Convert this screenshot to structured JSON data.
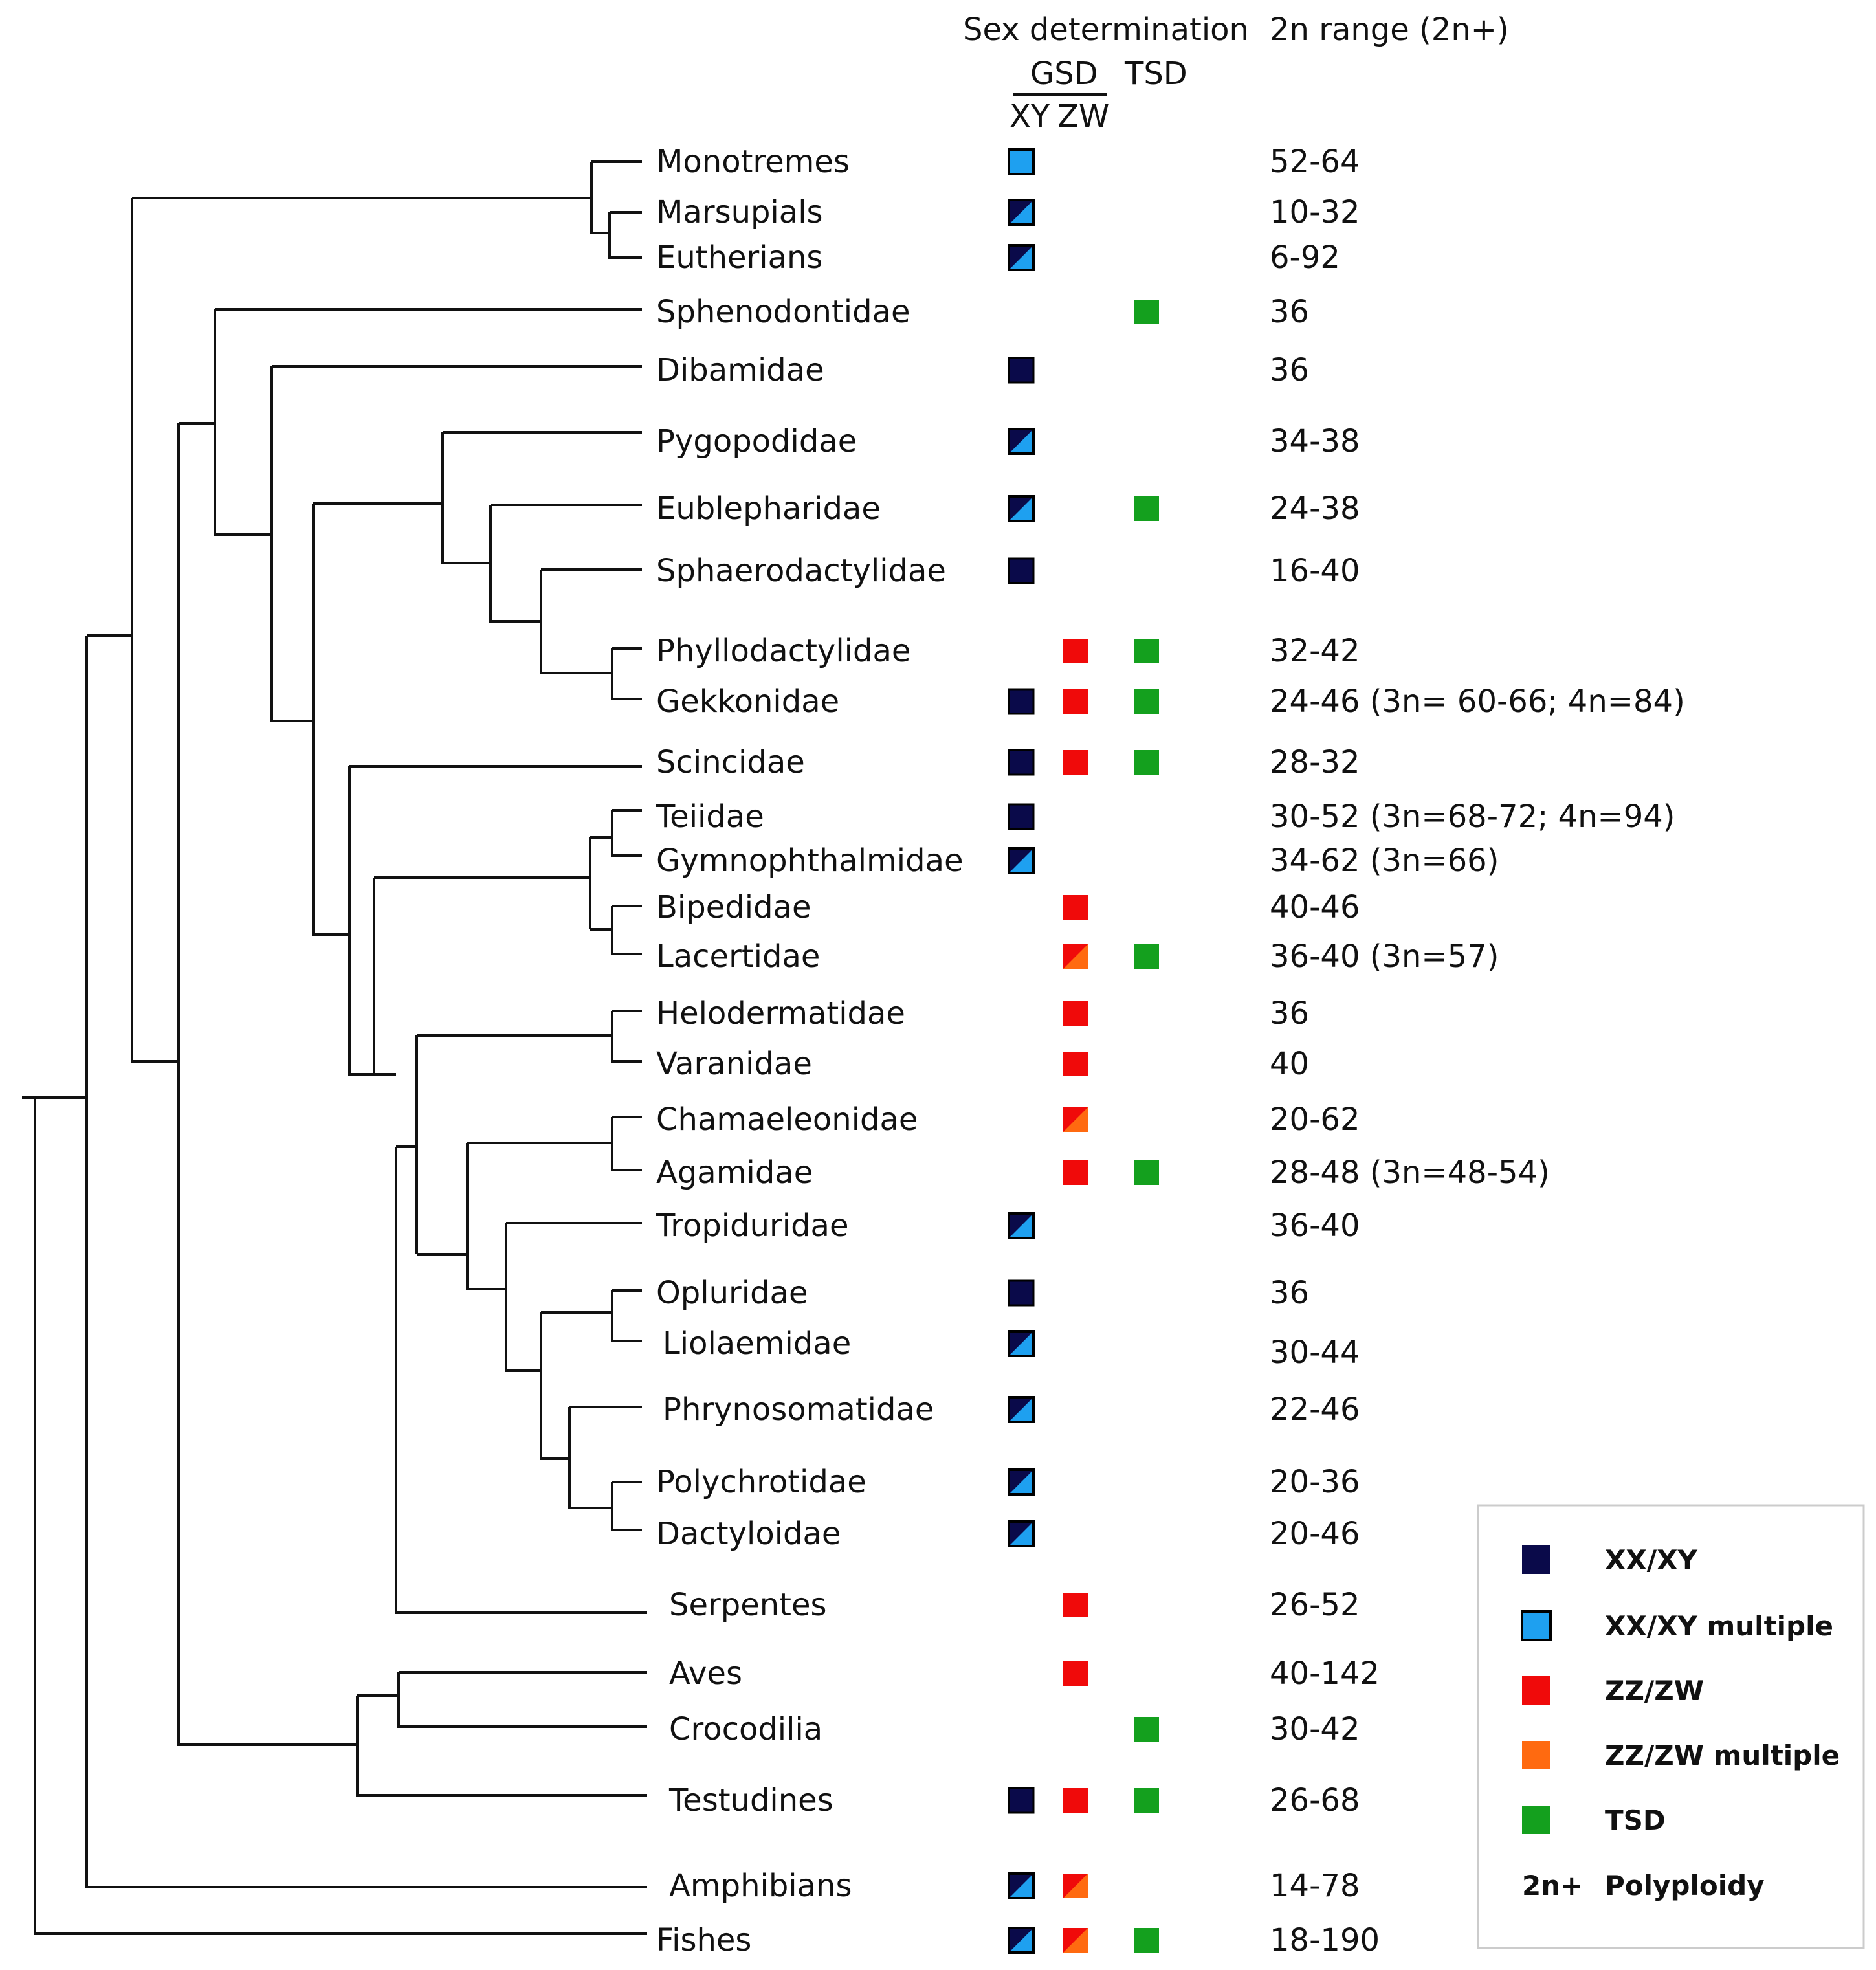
{
  "headers": {
    "sex_determination": "Sex determination",
    "gsd": "GSD",
    "tsd": "TSD",
    "xy": "XY",
    "zw": "ZW",
    "range": "2n range (2n+)"
  },
  "colors": {
    "xy": "#0a0a4a",
    "xy_multiple": "#1ea0f0",
    "zw": "#f00a0a",
    "zw_multiple": "#ff6a10",
    "tsd": "#14a01e"
  },
  "taxa": [
    {
      "name": "Monotremes",
      "xy": "multiple_full",
      "zw": "",
      "tsd": false,
      "range": "52-64"
    },
    {
      "name": "Marsupials",
      "xy": "multiple",
      "zw": "",
      "tsd": false,
      "range": "10-32"
    },
    {
      "name": "Eutherians",
      "xy": "multiple",
      "zw": "",
      "tsd": false,
      "range": "6-92"
    },
    {
      "name": "Sphenodontidae",
      "xy": "",
      "zw": "",
      "tsd": true,
      "range": "36"
    },
    {
      "name": "Dibamidae",
      "xy": "simple",
      "zw": "",
      "tsd": false,
      "range": "36"
    },
    {
      "name": "Pygopodidae",
      "xy": "multiple",
      "zw": "",
      "tsd": false,
      "range": "34-38"
    },
    {
      "name": "Eublepharidae",
      "xy": "multiple",
      "zw": "",
      "tsd": true,
      "range": "24-38"
    },
    {
      "name": "Sphaerodactylidae",
      "xy": "simple",
      "zw": "",
      "tsd": false,
      "range": "16-40"
    },
    {
      "name": "Phyllodactylidae",
      "xy": "",
      "zw": "simple",
      "tsd": true,
      "range": "32-42"
    },
    {
      "name": "Gekkonidae",
      "xy": "simple",
      "zw": "simple",
      "tsd": true,
      "range": "24-46 (3n= 60-66; 4n=84)"
    },
    {
      "name": "Scincidae",
      "xy": "simple",
      "zw": "simple",
      "tsd": true,
      "range": "28-32"
    },
    {
      "name": "Teiidae",
      "xy": "simple",
      "zw": "",
      "tsd": false,
      "range": "30-52 (3n=68-72; 4n=94)"
    },
    {
      "name": "Gymnophthalmidae",
      "xy": "multiple",
      "zw": "",
      "tsd": false,
      "range": "34-62 (3n=66)"
    },
    {
      "name": "Bipedidae",
      "xy": "",
      "zw": "simple",
      "tsd": false,
      "range": "40-46"
    },
    {
      "name": "Lacertidae",
      "xy": "",
      "zw": "multiple",
      "tsd": true,
      "range": "36-40 (3n=57)"
    },
    {
      "name": "Helodermatidae",
      "xy": "",
      "zw": "simple",
      "tsd": false,
      "range": "36"
    },
    {
      "name": "Varanidae",
      "xy": "",
      "zw": "simple",
      "tsd": false,
      "range": "40"
    },
    {
      "name": "Chamaeleonidae",
      "xy": "",
      "zw": "multiple",
      "tsd": false,
      "range": "20-62"
    },
    {
      "name": "Agamidae",
      "xy": "",
      "zw": "simple",
      "tsd": true,
      "range": "28-48 (3n=48-54)"
    },
    {
      "name": "Tropiduridae",
      "xy": "multiple",
      "zw": "",
      "tsd": false,
      "range": "36-40"
    },
    {
      "name": "Opluridae",
      "xy": "simple",
      "zw": "",
      "tsd": false,
      "range": "36"
    },
    {
      "name": "Liolaemidae",
      "xy": "multiple",
      "zw": "",
      "tsd": false,
      "range": "30-44"
    },
    {
      "name": "Phrynosomatidae",
      "xy": "multiple",
      "zw": "",
      "tsd": false,
      "range": "22-46"
    },
    {
      "name": "Polychrotidae",
      "xy": "multiple",
      "zw": "",
      "tsd": false,
      "range": "20-36"
    },
    {
      "name": "Dactyloidae",
      "xy": "multiple",
      "zw": "",
      "tsd": false,
      "range": "20-46"
    },
    {
      "name": "Serpentes",
      "xy": "",
      "zw": "simple",
      "tsd": false,
      "range": "26-52"
    },
    {
      "name": "Aves",
      "xy": "",
      "zw": "simple",
      "tsd": false,
      "range": "40-142"
    },
    {
      "name": "Crocodilia",
      "xy": "",
      "zw": "",
      "tsd": true,
      "range": "30-42"
    },
    {
      "name": "Testudines",
      "xy": "simple",
      "zw": "simple",
      "tsd": true,
      "range": "26-68"
    },
    {
      "name": "Amphibians",
      "xy": "multiple",
      "zw": "multiple",
      "tsd": false,
      "range": "14-78"
    },
    {
      "name": "Fishes",
      "xy": "multiple",
      "zw": "multiple",
      "tsd": true,
      "range": "18-190"
    }
  ],
  "legend": {
    "items": [
      {
        "key": "xy",
        "label": "XX/XY"
      },
      {
        "key": "xy_multiple",
        "label": "XX/XY multiple"
      },
      {
        "key": "zw",
        "label": "ZZ/ZW"
      },
      {
        "key": "zw_multiple",
        "label": "ZZ/ZW multiple"
      },
      {
        "key": "tsd",
        "label": "TSD"
      }
    ],
    "polyploidy_symbol": "2n+",
    "polyploidy_label": "Polyploidy"
  }
}
